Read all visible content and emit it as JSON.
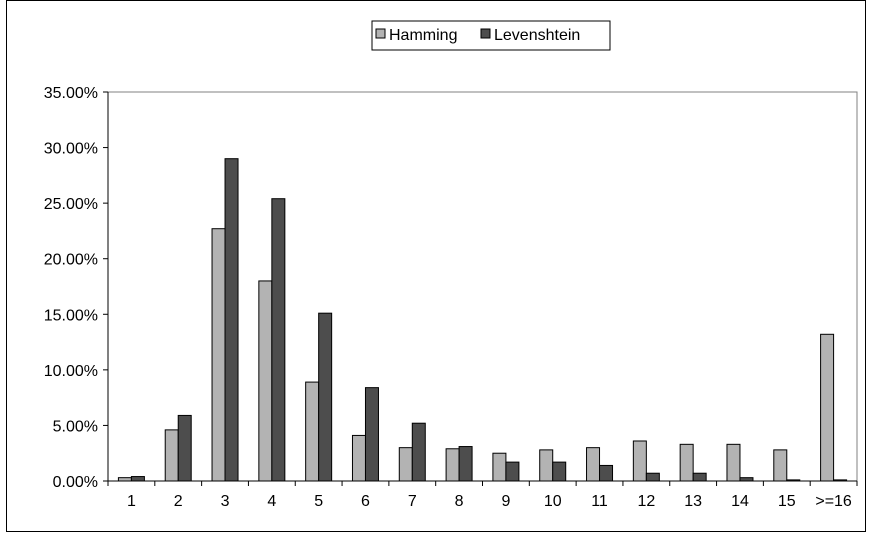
{
  "chart_data": {
    "type": "bar",
    "categories": [
      "1",
      "2",
      "3",
      "4",
      "5",
      "6",
      "7",
      "8",
      "9",
      "10",
      "11",
      "12",
      "13",
      "14",
      "15",
      ">=16"
    ],
    "series": [
      {
        "name": "Hamming",
        "values": [
          0.3,
          4.6,
          22.7,
          18.0,
          8.9,
          4.1,
          3.0,
          2.9,
          2.5,
          2.8,
          3.0,
          3.6,
          3.3,
          3.3,
          2.8,
          13.2
        ]
      },
      {
        "name": "Levenshtein",
        "values": [
          0.4,
          5.9,
          29.0,
          25.4,
          15.1,
          8.4,
          5.2,
          3.1,
          1.7,
          1.7,
          1.4,
          0.7,
          0.7,
          0.3,
          0.1,
          0.1
        ]
      }
    ],
    "ylim": [
      0,
      35
    ],
    "yticks": [
      "0.00%",
      "5.00%",
      "10.00%",
      "15.00%",
      "20.00%",
      "25.00%",
      "30.00%",
      "35.00%"
    ],
    "ytick_values": [
      0,
      5,
      10,
      15,
      20,
      25,
      30,
      35
    ],
    "legend_placement": "top-center",
    "grid": false,
    "colors": {
      "Hamming": "#b3b3b3",
      "Levenshtein": "#4d4d4d"
    }
  }
}
